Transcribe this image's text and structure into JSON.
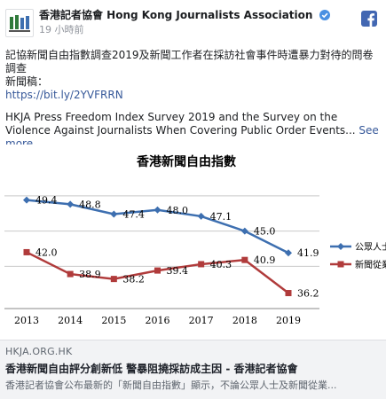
{
  "post": {
    "page_name": "香港記者協會 Hong Kong Journalists Association",
    "timestamp": "19 小時前",
    "text_zh_line1": "記協新聞自由指數調查2019及新聞工作者在採訪社會事件時遭暴力對待的問卷",
    "text_zh_line2": "調查",
    "text_zh_line3": "新聞稿：",
    "link": "https://bit.ly/2YVFRRN",
    "text_en": "HKJA Press Freedom Index Survey 2019 and the Survey on the Violence Against Journalists When Covering Public Order Events...",
    "see_more": "See more"
  },
  "link_card": {
    "domain": "HKJA.ORG.HK",
    "title": "香港新聞自由評分創新低 警暴阻撓採訪成主因 - 香港記者協會",
    "description": "香港記者協會公布最新的「新聞自由指數」顯示，不論公眾人士及新聞從業..."
  },
  "chart_data": {
    "type": "line",
    "title": "香港新聞自由指數",
    "x": [
      "2013",
      "2014",
      "2015",
      "2016",
      "2017",
      "2018",
      "2019"
    ],
    "series": [
      {
        "name": "公眾人士",
        "values": [
          49.4,
          48.8,
          47.4,
          48.0,
          47.1,
          45.0,
          41.9
        ],
        "color": "#3d6fb0"
      },
      {
        "name": "新聞從業員",
        "values": [
          42.0,
          38.9,
          38.2,
          39.4,
          40.3,
          40.9,
          36.2
        ],
        "color": "#b03b3b"
      }
    ],
    "ylim": [
      34,
      52
    ],
    "grid": true,
    "legend": "right"
  },
  "colors": {
    "link": "#365899",
    "facebook": "#4267b2",
    "verified": "#4a90e2"
  },
  "icons": {
    "verified": "verified-badge-icon",
    "facebook": "facebook-logo-icon"
  }
}
